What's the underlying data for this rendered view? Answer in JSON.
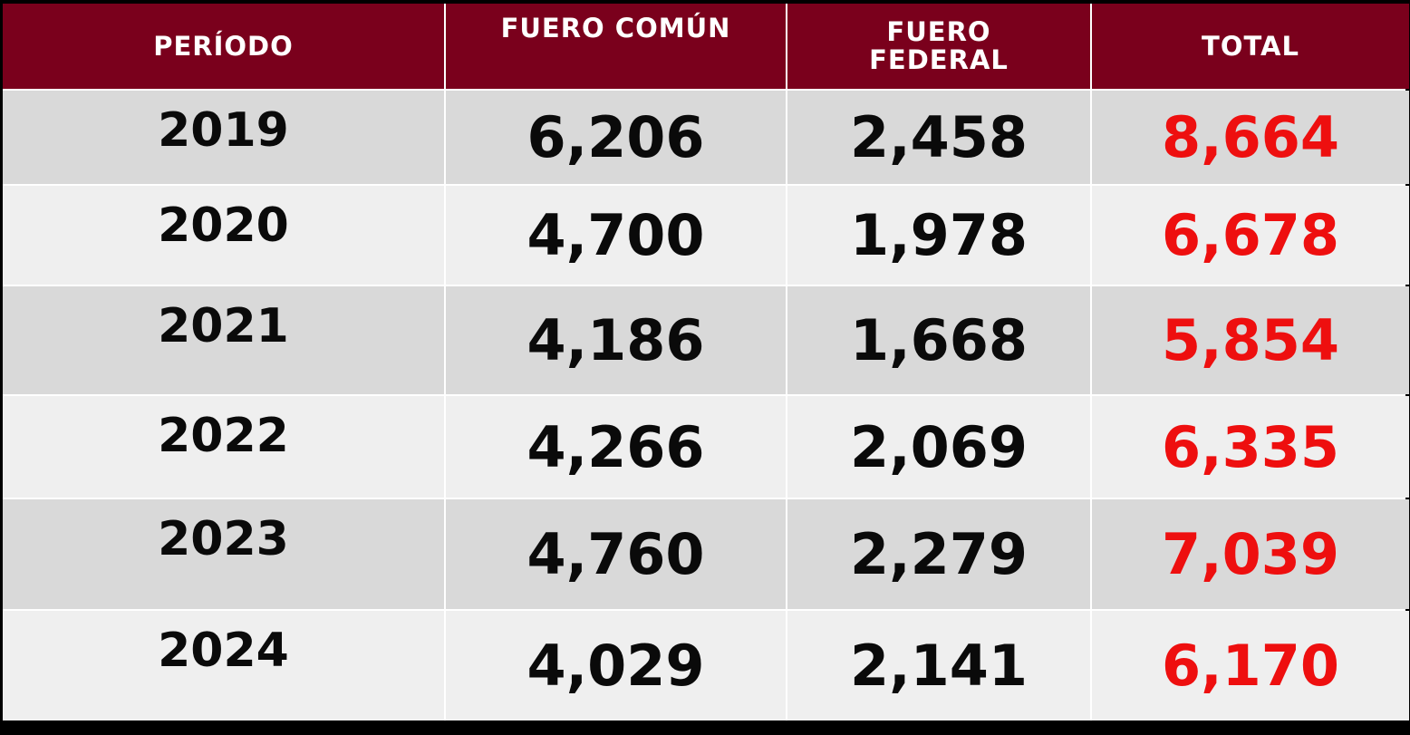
{
  "table": {
    "headers": {
      "period": "PERÍODO",
      "fuero_comun": "FUERO COMÚN",
      "fuero_federal_line1": "FUERO",
      "fuero_federal_line2": "FEDERAL",
      "total": "TOTAL"
    },
    "rows": [
      {
        "period": "2019",
        "fuero_comun": "6,206",
        "fuero_federal": "2,458",
        "total": "8,664"
      },
      {
        "period": "2020",
        "fuero_comun": "4,700",
        "fuero_federal": "1,978",
        "total": "6,678"
      },
      {
        "period": "2021",
        "fuero_comun": "4,186",
        "fuero_federal": "1,668",
        "total": "5,854"
      },
      {
        "period": "2022",
        "fuero_comun": "4,266",
        "fuero_federal": "2,069",
        "total": "6,335"
      },
      {
        "period": "2023",
        "fuero_comun": "4,760",
        "fuero_federal": "2,279",
        "total": "7,039"
      },
      {
        "period": "2024",
        "fuero_comun": "4,029",
        "fuero_federal": "2,141",
        "total": "6,170"
      }
    ]
  },
  "colors": {
    "header_bg": "#7a001c",
    "header_text": "#ffffff",
    "row_dark": "#d9d9d9",
    "row_light": "#efefef",
    "total_text": "#ee0f0f",
    "value_text": "#0a0a0a"
  }
}
